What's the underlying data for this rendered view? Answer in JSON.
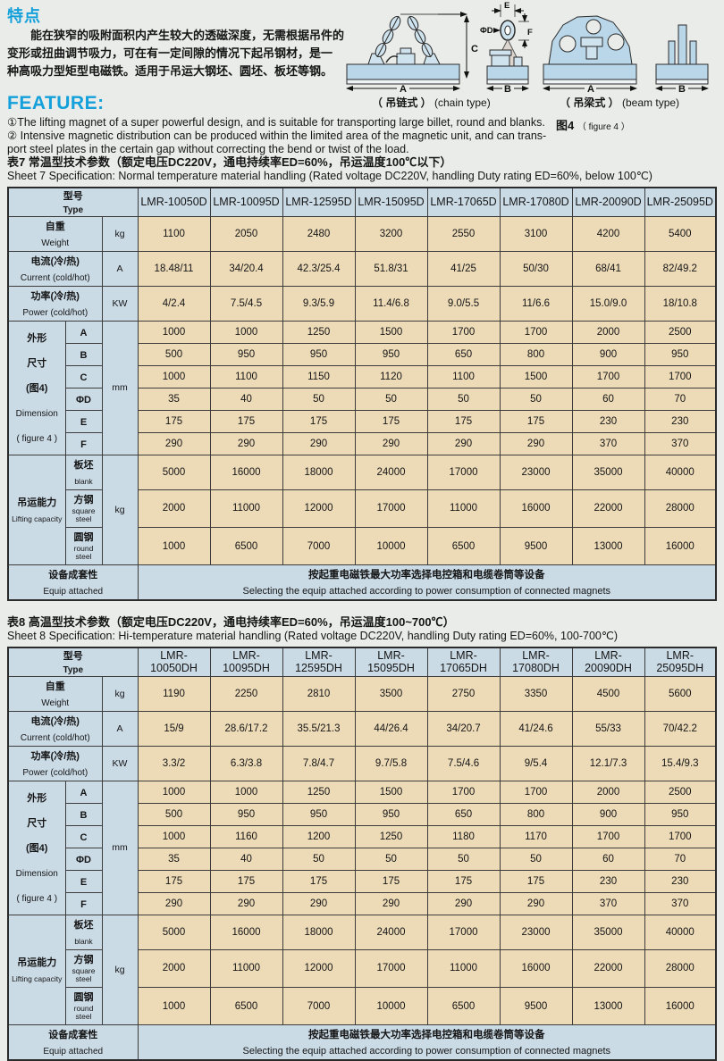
{
  "colors": {
    "accent": "#14a0da",
    "cell_blue": "#cbdbe6",
    "cell_tan": "#eddbb8",
    "diagram_fill": "#b9d7e9"
  },
  "features_cn": {
    "title": "特点",
    "lines": [
      "能在狭窄的吸附面积内产生较大的透磁深度，无需根据吊件的",
      "变形或扭曲调节吸力，可在有一定间隙的情况下起吊钢材，是一",
      "种高吸力型矩型电磁铁。适用于吊运大钢坯、圆坯、板坯等钢。"
    ]
  },
  "features_en": {
    "title": "FEATURE:",
    "lines": [
      "①The lifting magnet of a super powerful design, and is suitable for transporting large billet, round and blanks.",
      "② Intensive magnetic distribution can be produced within the limited area of the magnetic unit, and can trans-",
      "port steel plates in the certain gap without correcting the bend or twist of the load."
    ]
  },
  "figure": {
    "chain_caption_cn": "（ 吊链式 ）",
    "chain_caption_en": "(chain type)",
    "beam_caption_cn": "（ 吊梁式 ）",
    "beam_caption_en": "(beam type)",
    "figure_no_cn": "图4",
    "figure_no_en": "（ figure 4 ）",
    "dims": [
      "A",
      "B",
      "C",
      "ΦD",
      "E",
      "F"
    ]
  },
  "tables": [
    {
      "title_cn": "表7 常温型技术参数（额定电压DC220V，通电持续率ED=60%，吊运温度100℃以下）",
      "title_en": "Sheet 7 Specification: Normal temperature material handling  (Rated voltage DC220V, handling Duty rating ED=60%, below 100℃)",
      "type_label_cn": "型号",
      "type_label_en": "Type",
      "models": [
        "LMR-10050D",
        "LMR-10095D",
        "LMR-12595D",
        "LMR-15095D",
        "LMR-17065D",
        "LMR-17080D",
        "LMR-20090D",
        "LMR-25095D"
      ],
      "rows": [
        {
          "label_cn": "自重",
          "label_en": "Weight",
          "unit": "kg",
          "values": [
            "1100",
            "2050",
            "2480",
            "3200",
            "2550",
            "3100",
            "4200",
            "5400"
          ]
        },
        {
          "label_cn": "电流(冷/热)",
          "label_en": "Current (cold/hot)",
          "unit": "A",
          "values": [
            "18.48/11",
            "34/20.4",
            "42.3/25.4",
            "51.8/31",
            "41/25",
            "50/30",
            "68/41",
            "82/49.2"
          ]
        },
        {
          "label_cn": "功率(冷/热)",
          "label_en": "Power (cold/hot)",
          "unit": "KW",
          "values": [
            "4/2.4",
            "7.5/4.5",
            "9.3/5.9",
            "11.4/6.8",
            "9.0/5.5",
            "11/6.6",
            "15.0/9.0",
            "18/10.8"
          ]
        }
      ],
      "dimension": {
        "label_lines": [
          "外形",
          "尺寸",
          "(图4)",
          "Dimension",
          "( figure 4 )"
        ],
        "unit": "mm",
        "rows": [
          {
            "dim": "A",
            "values": [
              "1000",
              "1000",
              "1250",
              "1500",
              "1700",
              "1700",
              "2000",
              "2500"
            ]
          },
          {
            "dim": "B",
            "values": [
              "500",
              "950",
              "950",
              "950",
              "650",
              "800",
              "900",
              "950"
            ]
          },
          {
            "dim": "C",
            "values": [
              "1000",
              "1100",
              "1150",
              "1120",
              "1100",
              "1500",
              "1700",
              "1700"
            ]
          },
          {
            "dim": "ΦD",
            "values": [
              "35",
              "40",
              "50",
              "50",
              "50",
              "50",
              "60",
              "70"
            ]
          },
          {
            "dim": "E",
            "values": [
              "175",
              "175",
              "175",
              "175",
              "175",
              "175",
              "230",
              "230"
            ]
          },
          {
            "dim": "F",
            "values": [
              "290",
              "290",
              "290",
              "290",
              "290",
              "290",
              "370",
              "370"
            ]
          }
        ]
      },
      "capacity": {
        "label_cn": "吊运能力",
        "label_en": "Lifting capacity",
        "unit": "kg",
        "rows": [
          {
            "label_cn": "板坯",
            "label_en": "blank",
            "values": [
              "5000",
              "16000",
              "18000",
              "24000",
              "17000",
              "23000",
              "35000",
              "40000"
            ]
          },
          {
            "label_cn": "方钢",
            "label_en": "square steel",
            "values": [
              "2000",
              "11000",
              "12000",
              "17000",
              "11000",
              "16000",
              "22000",
              "28000"
            ]
          },
          {
            "label_cn": "圆钢",
            "label_en": "round steel",
            "values": [
              "1000",
              "6500",
              "7000",
              "10000",
              "6500",
              "9500",
              "13000",
              "16000"
            ]
          }
        ]
      },
      "equip": {
        "label_cn": "设备成套性",
        "label_en": "Equip attached",
        "text_cn": "按起重电磁铁最大功率选择电控箱和电缆卷筒等设备",
        "text_en": "Selecting the equip attached according to power consumption of connected magnets"
      }
    },
    {
      "title_cn": "表8 高温型技术参数（额定电压DC220V，通电持续率ED=60%，吊运温度100~700℃）",
      "title_en": "Sheet 8 Specification: Hi-temperature material handling  (Rated voltage DC220V, handling Duty rating ED=60%, 100-700℃)",
      "type_label_cn": "型号",
      "type_label_en": "Type",
      "models": [
        "LMR-10050DH",
        "LMR-10095DH",
        "LMR-12595DH",
        "LMR-15095DH",
        "LMR-17065DH",
        "LMR-17080DH",
        "LMR-20090DH",
        "LMR-25095DH"
      ],
      "rows": [
        {
          "label_cn": "自重",
          "label_en": "Weight",
          "unit": "kg",
          "values": [
            "1190",
            "2250",
            "2810",
            "3500",
            "2750",
            "3350",
            "4500",
            "5600"
          ]
        },
        {
          "label_cn": "电流(冷/热)",
          "label_en": "Current (cold/hot)",
          "unit": "A",
          "values": [
            "15/9",
            "28.6/17.2",
            "35.5/21.3",
            "44/26.4",
            "34/20.7",
            "41/24.6",
            "55/33",
            "70/42.2"
          ]
        },
        {
          "label_cn": "功率(冷/热)",
          "label_en": "Power (cold/hot)",
          "unit": "KW",
          "values": [
            "3.3/2",
            "6.3/3.8",
            "7.8/4.7",
            "9.7/5.8",
            "7.5/4.6",
            "9/5.4",
            "12.1/7.3",
            "15.4/9.3"
          ]
        }
      ],
      "dimension": {
        "label_lines": [
          "外形",
          "尺寸",
          "(图4)",
          "Dimension",
          "( figure 4 )"
        ],
        "unit": "mm",
        "rows": [
          {
            "dim": "A",
            "values": [
              "1000",
              "1000",
              "1250",
              "1500",
              "1700",
              "1700",
              "2000",
              "2500"
            ]
          },
          {
            "dim": "B",
            "values": [
              "500",
              "950",
              "950",
              "950",
              "650",
              "800",
              "900",
              "950"
            ]
          },
          {
            "dim": "C",
            "values": [
              "1000",
              "1160",
              "1200",
              "1250",
              "1180",
              "1170",
              "1700",
              "1700"
            ]
          },
          {
            "dim": "ΦD",
            "values": [
              "35",
              "40",
              "50",
              "50",
              "50",
              "50",
              "60",
              "70"
            ]
          },
          {
            "dim": "E",
            "values": [
              "175",
              "175",
              "175",
              "175",
              "175",
              "175",
              "230",
              "230"
            ]
          },
          {
            "dim": "F",
            "values": [
              "290",
              "290",
              "290",
              "290",
              "290",
              "290",
              "370",
              "370"
            ]
          }
        ]
      },
      "capacity": {
        "label_cn": "吊运能力",
        "label_en": "Lifting capacity",
        "unit": "kg",
        "rows": [
          {
            "label_cn": "板坯",
            "label_en": "blank",
            "values": [
              "5000",
              "16000",
              "18000",
              "24000",
              "17000",
              "23000",
              "35000",
              "40000"
            ]
          },
          {
            "label_cn": "方钢",
            "label_en": "square steel",
            "values": [
              "2000",
              "11000",
              "12000",
              "17000",
              "11000",
              "16000",
              "22000",
              "28000"
            ]
          },
          {
            "label_cn": "圆钢",
            "label_en": "round steel",
            "values": [
              "1000",
              "6500",
              "7000",
              "10000",
              "6500",
              "9500",
              "13000",
              "16000"
            ]
          }
        ]
      },
      "equip": {
        "label_cn": "设备成套性",
        "label_en": "Equip attached",
        "text_cn": "按起重电磁铁最大功率选择电控箱和电缆卷筒等设备",
        "text_en": "Selecting the equip attached according to power consumption of connected magnets"
      }
    }
  ]
}
